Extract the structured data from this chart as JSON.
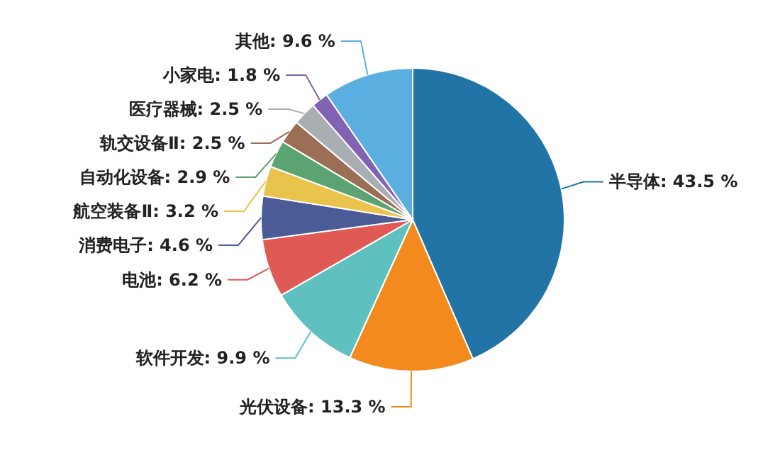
{
  "chart_data": {
    "type": "pie",
    "categories": [
      "半导体",
      "光伏设备",
      "软件开发",
      "电池",
      "消费电子",
      "航空装备Ⅱ",
      "自动化设备",
      "轨交设备Ⅱ",
      "医疗器械",
      "小家电",
      "其他"
    ],
    "values": [
      43.5,
      13.3,
      9.9,
      6.2,
      4.6,
      3.2,
      2.9,
      2.5,
      2.5,
      1.8,
      9.6
    ],
    "value_labels": [
      "43.5 %",
      "13.3 %",
      "9.9 %",
      "6.2 %",
      "4.6 %",
      "3.2 %",
      "2.9 %",
      "2.5 %",
      "2.5 %",
      "1.8 %",
      "9.6 %"
    ],
    "colors": [
      "#2274a6",
      "#f28a1e",
      "#5fc0c0",
      "#e05a55",
      "#4b5b95",
      "#e9c44c",
      "#5ca372",
      "#9b6f56",
      "#a9aeb3",
      "#8262b2",
      "#5aafe0"
    ]
  }
}
